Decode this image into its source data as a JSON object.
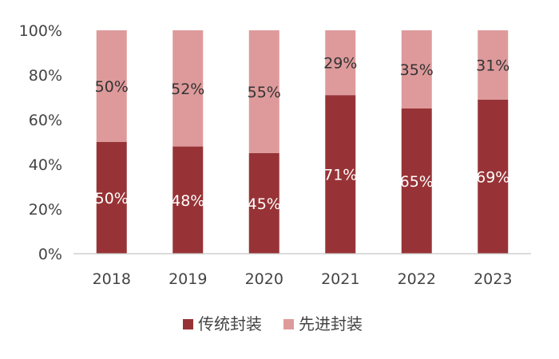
{
  "chart_data": {
    "type": "bar",
    "stacked": true,
    "categories": [
      "2018",
      "2019",
      "2020",
      "2021",
      "2022",
      "2023"
    ],
    "series": [
      {
        "name": "传统封装",
        "values": [
          50,
          48,
          45,
          71,
          65,
          69
        ],
        "labels": [
          "50%",
          "48%",
          "45%",
          "71%",
          "65%",
          "69%"
        ],
        "color": "#973336"
      },
      {
        "name": "先进封装",
        "values": [
          50,
          52,
          55,
          29,
          35,
          31
        ],
        "labels": [
          "50%",
          "52%",
          "55%",
          "29%",
          "35%",
          "31%"
        ],
        "color": "#DE9A9B"
      }
    ],
    "ylim": [
      0,
      100
    ],
    "yticks": [
      "0%",
      "20%",
      "40%",
      "60%",
      "80%",
      "100%"
    ],
    "grid": false,
    "legend_position": "bottom"
  }
}
